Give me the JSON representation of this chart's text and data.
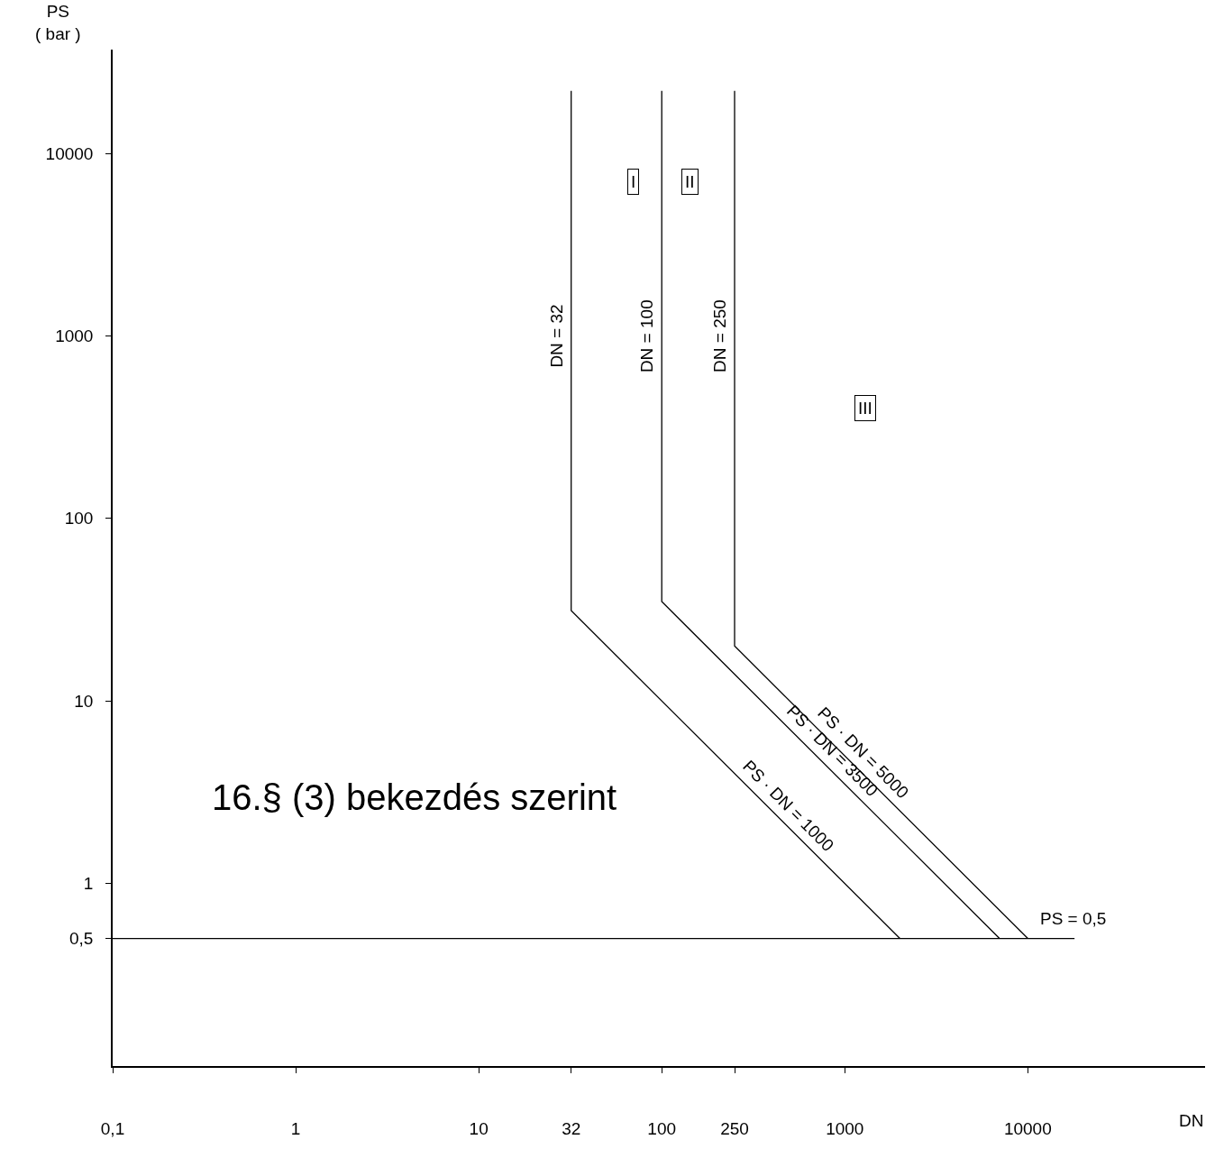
{
  "chart_data": {
    "type": "line",
    "xlabel": "DN",
    "ylabel": "PS\n( bar )",
    "log": "xy",
    "grid": false,
    "marker": "none",
    "line_style": "solid",
    "xlim": [
      0.1,
      93000
    ],
    "ylim": [
      0.1,
      37000
    ],
    "xticks": [
      {
        "value": 0.1,
        "label": "0,1"
      },
      1,
      10,
      32,
      100,
      250,
      1000,
      10000
    ],
    "yticks": [
      {
        "value": 0.5,
        "label": "0,5"
      },
      1,
      10,
      100,
      1000,
      10000
    ],
    "series": [
      {
        "color": "#000000",
        "x": [
          32,
          32,
          2000
        ],
        "values": [
          22000,
          31.25,
          0.5
        ]
      },
      {
        "color": "#000000",
        "x": [
          100,
          100,
          7000
        ],
        "values": [
          22000,
          35,
          0.5
        ]
      },
      {
        "color": "#000000",
        "x": [
          250,
          250,
          10000
        ],
        "values": [
          22000,
          20,
          0.5
        ]
      },
      {
        "color": "#000000",
        "x": [
          0.1,
          18000
        ],
        "values": [
          0.5,
          0.5
        ]
      }
    ],
    "annotations": [
      {
        "text": "DN = 32",
        "x": 32,
        "y": 1000
      },
      {
        "text": "DN = 100",
        "x": 100,
        "y": 1000
      },
      {
        "text": "DN = 250",
        "x": 250,
        "y": 1000
      },
      {
        "text": "PS · DN = 1000",
        "x": 430,
        "y": 2.33
      },
      {
        "text": "PS · DN = 3500",
        "x": 750,
        "y": 4.67
      },
      {
        "text": "PS · DN = 5000",
        "x": 1100,
        "y": 4.55
      },
      {
        "text": "PS = 0,5",
        "x": 17600,
        "y": 0.5
      },
      {
        "text": "I",
        "x": 70,
        "y": 7000
      },
      {
        "text": "II",
        "x": 142,
        "y": 7000
      },
      {
        "text": "III",
        "x": 1300,
        "y": 400
      },
      "16.§ (3) bekezdés szerint"
    ]
  }
}
